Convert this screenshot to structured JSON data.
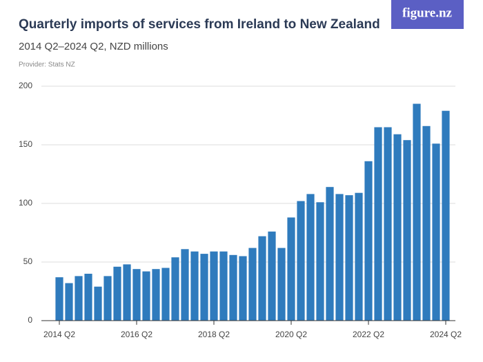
{
  "chart_data": {
    "type": "bar",
    "title": "Quarterly imports of services from Ireland to New Zealand",
    "subtitle": "2014 Q2–2024 Q2, NZD millions",
    "provider": "Provider: Stats NZ",
    "logo": "figure.nz",
    "categories": [
      "2014 Q2",
      null,
      null,
      null,
      null,
      null,
      null,
      null,
      "2016 Q2",
      null,
      null,
      null,
      null,
      null,
      null,
      null,
      "2018 Q2",
      null,
      null,
      null,
      null,
      null,
      null,
      null,
      "2020 Q2",
      null,
      null,
      null,
      null,
      null,
      null,
      null,
      "2022 Q2",
      null,
      null,
      null,
      null,
      null,
      null,
      null,
      "2024 Q2"
    ],
    "values": [
      37,
      32,
      38,
      40,
      29,
      38,
      46,
      48,
      44,
      42,
      44,
      45,
      54,
      61,
      59,
      57,
      59,
      59,
      56,
      55,
      62,
      72,
      76,
      62,
      88,
      102,
      108,
      101,
      114,
      108,
      107,
      109,
      136,
      165,
      165,
      159,
      154,
      185,
      166,
      151,
      179
    ],
    "color": "#2f7bbd",
    "ylim": [
      0,
      200
    ],
    "yticks": [
      0,
      50,
      100,
      150,
      200
    ],
    "grid": true
  }
}
